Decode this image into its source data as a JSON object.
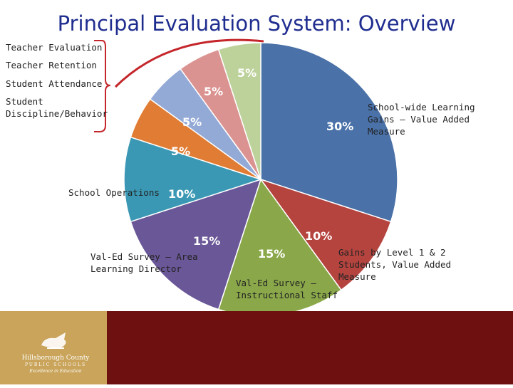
{
  "title": "Principal Evaluation System:  Overview",
  "chart_data": {
    "type": "pie",
    "title": "Principal Evaluation System:  Overview",
    "slices": [
      {
        "label": "School-wide Learning Gains – Value Added Measure",
        "value": 30,
        "color": "#4a71a8"
      },
      {
        "label": "Gains by Level 1 & 2 Students, Value Added Measure",
        "value": 10,
        "color": "#b5443f"
      },
      {
        "label": "Val-Ed Survey – Instructional Staff",
        "value": 15,
        "color": "#8aa84a"
      },
      {
        "label": "Val-Ed Survey – Area Learning Director",
        "value": 15,
        "color": "#6a5797"
      },
      {
        "label": "School Operations",
        "value": 10,
        "color": "#3b98b4"
      },
      {
        "label": "Student Discipline/Behavior",
        "value": 5,
        "color": "#e07c33"
      },
      {
        "label": "Student Attendance",
        "value": 5,
        "color": "#93a9d6"
      },
      {
        "label": "Teacher Retention",
        "value": 5,
        "color": "#db9391"
      },
      {
        "label": "Teacher Evaluation",
        "value": 5,
        "color": "#bdd29b"
      }
    ]
  },
  "labels": {
    "teacher_evaluation": "Teacher Evaluation",
    "teacher_retention": "Teacher Retention",
    "student_attendance": "Student Attendance",
    "student_discipline": "Student\nDiscipline/Behavior",
    "school_operations": "School Operations",
    "val_ed_ald": "Val-Ed Survey – Area\nLearning Director",
    "val_ed_staff": "Val-Ed Survey –\nInstructional Staff",
    "gains_level": "Gains by Level 1 & 2\nStudents, Value Added\nMeasure",
    "schoolwide": "School-wide Learning\nGains – Value Added\nMeasure"
  },
  "percent_labels": {
    "schoolwide": "30%",
    "gains_level": "10%",
    "val_ed_staff": "15%",
    "val_ed_ald": "15%",
    "school_operations": "10%",
    "student_discipline": "5%",
    "student_attendance": "5%",
    "teacher_retention": "5%",
    "teacher_evaluation": "5%"
  },
  "colors": {
    "accent_arc": "#c4262b",
    "title": "#1f2d8f",
    "footer": "#6e0f10",
    "logo": "#c9a45a"
  },
  "logo": {
    "name": "Hillsborough County",
    "line2": "PUBLIC SCHOOLS",
    "tagline": "Excellence in Education"
  }
}
